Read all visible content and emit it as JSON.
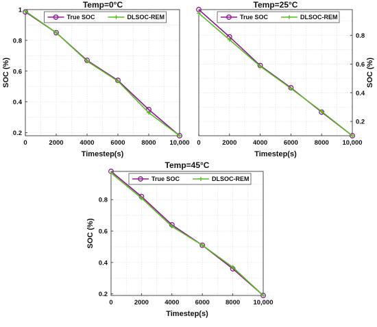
{
  "chart_data": [
    {
      "type": "line",
      "title": "Temp=0°C",
      "xlabel": "Timestep(s)",
      "ylabel": "SOC (%)",
      "y_axis_side": "left",
      "xlim": [
        0,
        10000
      ],
      "ylim": [
        0.18,
        1.0
      ],
      "xticks": [
        0,
        2000,
        4000,
        6000,
        8000,
        10000
      ],
      "xtick_labels": [
        "0",
        "2000",
        "4000",
        "6000",
        "8000",
        "10,000"
      ],
      "yticks": [
        0.2,
        0.4,
        0.6,
        0.8,
        1
      ],
      "ytick_labels": [
        "0.2",
        "0.4",
        "0.6",
        "0.8",
        "1"
      ],
      "grid": true,
      "legend_position": "top",
      "x": [
        0,
        2000,
        4000,
        6000,
        8000,
        10000
      ],
      "series": [
        {
          "name": "True SOC",
          "color": "#8B1A8B",
          "marker": "circle",
          "values": [
            0.985,
            0.85,
            0.67,
            0.54,
            0.35,
            0.18
          ]
        },
        {
          "name": "DLSOC-REM",
          "color": "#5CB82A",
          "marker": "plus",
          "values": [
            0.99,
            0.85,
            0.665,
            0.535,
            0.33,
            0.18
          ]
        }
      ]
    },
    {
      "type": "line",
      "title": "Temp=25°C",
      "xlabel": "Timestep(s)",
      "ylabel": "SOC (%)",
      "y_axis_side": "right",
      "xlim": [
        0,
        10000
      ],
      "ylim": [
        0.1,
        0.98
      ],
      "xticks": [
        0,
        2000,
        4000,
        6000,
        8000,
        10000
      ],
      "xtick_labels": [
        "0",
        "2000",
        "4000",
        "6000",
        "8000",
        "10,000"
      ],
      "yticks": [
        0.2,
        0.4,
        0.6,
        0.8
      ],
      "ytick_labels": [
        "0.2",
        "0.4",
        "0.6",
        "0.8"
      ],
      "grid": true,
      "legend_position": "top",
      "x": [
        0,
        2000,
        4000,
        6000,
        8000,
        10000
      ],
      "series": [
        {
          "name": "True SOC",
          "color": "#8B1A8B",
          "marker": "circle",
          "values": [
            0.98,
            0.79,
            0.59,
            0.435,
            0.265,
            0.1
          ]
        },
        {
          "name": "DLSOC-REM",
          "color": "#5CB82A",
          "marker": "plus",
          "values": [
            0.955,
            0.77,
            0.585,
            0.43,
            0.27,
            0.1
          ]
        }
      ]
    },
    {
      "type": "line",
      "title": "Temp=45°C",
      "xlabel": "Timestep(s)",
      "ylabel": "SOC (%)",
      "y_axis_side": "left",
      "xlim": [
        0,
        10000
      ],
      "ylim": [
        0.19,
        0.98
      ],
      "xticks": [
        0,
        2000,
        4000,
        6000,
        8000,
        10000
      ],
      "xtick_labels": [
        "0",
        "2000",
        "4000",
        "6000",
        "8000",
        "10,000"
      ],
      "yticks": [
        0.2,
        0.4,
        0.6,
        0.8
      ],
      "ytick_labels": [
        "0.2",
        "0.4",
        "0.6",
        "0.8"
      ],
      "grid": true,
      "legend_position": "top",
      "x": [
        0,
        2000,
        4000,
        6000,
        8000,
        10000
      ],
      "series": [
        {
          "name": "True SOC",
          "color": "#8B1A8B",
          "marker": "circle",
          "values": [
            0.98,
            0.82,
            0.64,
            0.51,
            0.36,
            0.19
          ]
        },
        {
          "name": "DLSOC-REM",
          "color": "#5CB82A",
          "marker": "plus",
          "values": [
            0.97,
            0.81,
            0.63,
            0.51,
            0.37,
            0.19
          ]
        }
      ]
    }
  ]
}
